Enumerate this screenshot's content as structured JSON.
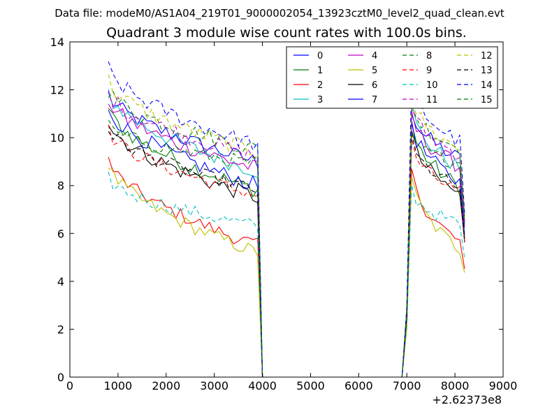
{
  "figure": {
    "suptitle": "Data file: modeM0/AS1A04_219T01_9000002054_13923cztM0_level2_quad_clean.evt"
  },
  "chart_data": {
    "type": "line",
    "title": "Quadrant 3 module wise count rates with 100.0s bins.",
    "xlabel": "",
    "ylabel": "",
    "x_offset_label": "+2.62373e8",
    "xlim": [
      0,
      9000
    ],
    "ylim": [
      0,
      14
    ],
    "xticks": [
      "0",
      "1000",
      "2000",
      "3000",
      "4000",
      "5000",
      "6000",
      "7000",
      "8000",
      "9000"
    ],
    "yticks": [
      "0",
      "2",
      "4",
      "6",
      "8",
      "10",
      "12",
      "14"
    ],
    "grid": false,
    "legend_position": "top-right",
    "series": [
      {
        "name": "0",
        "color": "#0000ff",
        "dash": "solid",
        "start": 11.8,
        "end": 9.0,
        "noise": 0.35
      },
      {
        "name": "1",
        "color": "#008000",
        "dash": "solid",
        "start": 11.2,
        "end": 7.8,
        "noise": 0.35
      },
      {
        "name": "2",
        "color": "#ff0000",
        "dash": "solid",
        "start": 9.1,
        "end": 5.5,
        "noise": 0.3
      },
      {
        "name": "3",
        "color": "#00bfbf",
        "dash": "solid",
        "start": 11.9,
        "end": 8.6,
        "noise": 0.35
      },
      {
        "name": "4",
        "color": "#bf00bf",
        "dash": "solid",
        "start": 11.6,
        "end": 8.7,
        "noise": 0.35
      },
      {
        "name": "5",
        "color": "#bfbf00",
        "dash": "solid",
        "start": 8.9,
        "end": 5.2,
        "noise": 0.3
      },
      {
        "name": "6",
        "color": "#000000",
        "dash": "solid",
        "start": 10.7,
        "end": 7.5,
        "noise": 0.35
      },
      {
        "name": "7",
        "color": "#0000ff",
        "dash": "solid",
        "start": 11.3,
        "end": 8.0,
        "noise": 0.35
      },
      {
        "name": "8",
        "color": "#008000",
        "dash": "dashed",
        "start": 12.0,
        "end": 9.5,
        "noise": 0.35
      },
      {
        "name": "9",
        "color": "#ff0000",
        "dash": "dashed",
        "start": 10.3,
        "end": 7.6,
        "noise": 0.3
      },
      {
        "name": "10",
        "color": "#00bfbf",
        "dash": "dashed",
        "start": 8.3,
        "end": 6.3,
        "noise": 0.3
      },
      {
        "name": "11",
        "color": "#bf00bf",
        "dash": "dashed",
        "start": 11.9,
        "end": 9.2,
        "noise": 0.35
      },
      {
        "name": "12",
        "color": "#bfbf00",
        "dash": "dashed",
        "start": 12.4,
        "end": 9.4,
        "noise": 0.35
      },
      {
        "name": "13",
        "color": "#000000",
        "dash": "dashed",
        "start": 10.4,
        "end": 7.8,
        "noise": 0.3
      },
      {
        "name": "14",
        "color": "#0000ff",
        "dash": "dashed",
        "start": 12.9,
        "end": 9.7,
        "noise": 0.35
      },
      {
        "name": "15",
        "color": "#008000",
        "dash": "dashed",
        "start": 10.5,
        "end": 8.9,
        "noise": 0.3
      }
    ],
    "segments": {
      "first": {
        "x_start": 800,
        "x_end": 3900,
        "step": 100
      },
      "gap": {
        "drop_x": 4000,
        "rise_x": 6900,
        "value": 0
      },
      "second": {
        "x_start": 7000,
        "x_end": 8200,
        "step": 100,
        "end_drop": 0.45
      }
    }
  }
}
